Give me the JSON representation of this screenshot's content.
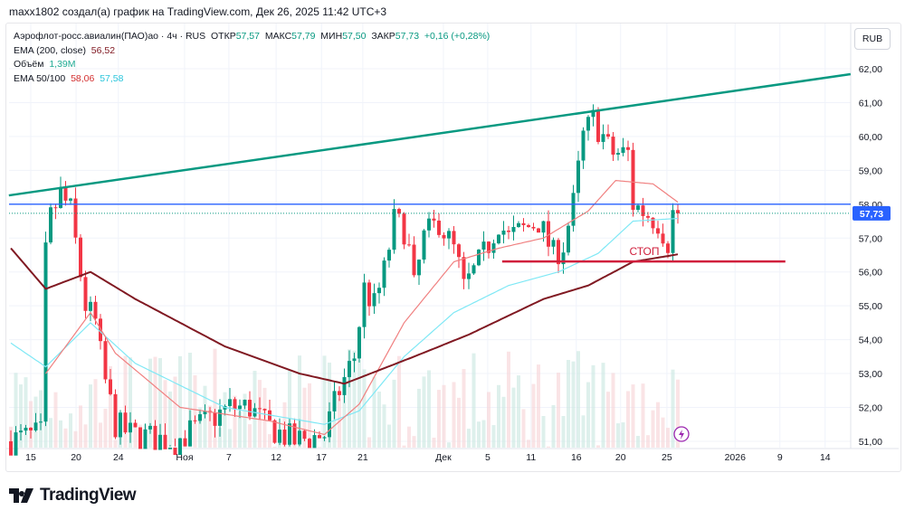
{
  "caption": "maxx1802 создал(а) график на TradingView.com, Дек 26, 2025 11:42 UTC+3",
  "legend": {
    "symbol": "Аэрофлот-росс.авиалин(ПАО)ао · 4ч · RUS",
    "open_label": "ОТКР",
    "open": "57,57",
    "high_label": "МАКС",
    "high": "57,79",
    "low_label": "МИН",
    "low": "57,50",
    "close_label": "ЗАКР",
    "close": "57,73",
    "change": "+0,16 (+0,28%)",
    "ema200_label": "EMA (200, close)",
    "ema200": "56,52",
    "volume_label": "Объём",
    "volume": "1,39M",
    "ema50_label": "EMA 50/100",
    "ema50": "58,06",
    "ema100": "57,58"
  },
  "currency_button": "RUB",
  "logo_text": "TradingView",
  "colors": {
    "up": "#089981",
    "down": "#f23645",
    "ema200": "#801922",
    "ema50": "#f08080",
    "ema100": "#7fe8f5",
    "trend": "#089981",
    "level": "#2962ff",
    "stop": "#d01f3c"
  },
  "chart_data": {
    "type": "candlestick",
    "y_ticks": [
      "62,00",
      "61,00",
      "60,00",
      "59,00",
      "58,00",
      "57,00",
      "56,00",
      "55,00",
      "54,00",
      "53,00",
      "52,00",
      "51,00"
    ],
    "ylim": [
      50.8,
      62.6
    ],
    "x_ticks": [
      {
        "label": "15",
        "bar": 4
      },
      {
        "label": "20",
        "bar": 13.1
      },
      {
        "label": "24",
        "bar": 21.6
      },
      {
        "label": "Ноя",
        "bar": 34.9
      },
      {
        "label": "7",
        "bar": 43.8
      },
      {
        "label": "12",
        "bar": 53.3
      },
      {
        "label": "17",
        "bar": 62.4
      },
      {
        "label": "21",
        "bar": 70.7
      },
      {
        "label": "Дек",
        "bar": 86.9
      },
      {
        "label": "5",
        "bar": 95.8
      },
      {
        "label": "11",
        "bar": 104.5
      },
      {
        "label": "16",
        "bar": 113.6
      },
      {
        "label": "20",
        "bar": 122.5
      },
      {
        "label": "25",
        "bar": 131.8
      },
      {
        "label": "2026",
        "bar": 145.5
      },
      {
        "label": "9",
        "bar": 154.5
      },
      {
        "label": "14",
        "bar": 163.6
      }
    ],
    "bars": 135,
    "price_path": [
      [
        0,
        51.0
      ],
      [
        7,
        51.2
      ],
      [
        7.3,
        55.5
      ],
      [
        8.7,
        57.5
      ],
      [
        11,
        58.3
      ],
      [
        13,
        57.8
      ],
      [
        16,
        55
      ],
      [
        18,
        54.5
      ],
      [
        19.6,
        53
      ],
      [
        22,
        51.5
      ],
      [
        25,
        51.2
      ],
      [
        34,
        51
      ],
      [
        45,
        52
      ],
      [
        49,
        52
      ],
      [
        52,
        51.5
      ],
      [
        58,
        51
      ],
      [
        64,
        51.2
      ],
      [
        67,
        52.5
      ],
      [
        70,
        53.5
      ],
      [
        72,
        55.5
      ],
      [
        74,
        55
      ],
      [
        76,
        56
      ],
      [
        78,
        57.5
      ],
      [
        80.5,
        57.2
      ],
      [
        82,
        55.5
      ],
      [
        84,
        57
      ],
      [
        87,
        57.5
      ],
      [
        90.5,
        56.5
      ],
      [
        92,
        55.5
      ],
      [
        96,
        56.5
      ],
      [
        99,
        57.5
      ],
      [
        101,
        57
      ],
      [
        107,
        57.5
      ],
      [
        110,
        56.5
      ],
      [
        112,
        56.8
      ],
      [
        114,
        58
      ],
      [
        116,
        60
      ],
      [
        118,
        60.5
      ],
      [
        120,
        60
      ],
      [
        121.5,
        59.5
      ],
      [
        125,
        59.5
      ],
      [
        126,
        58
      ],
      [
        128,
        57.8
      ],
      [
        131,
        57.5
      ],
      [
        133,
        56.9
      ],
      [
        134,
        57.73
      ]
    ],
    "ema200": [
      [
        0,
        56.7
      ],
      [
        7,
        55.5
      ],
      [
        16,
        56.0
      ],
      [
        25,
        55.2
      ],
      [
        43,
        53.8
      ],
      [
        58,
        53.0
      ],
      [
        67,
        52.7
      ],
      [
        74,
        53.1
      ],
      [
        81,
        53.5
      ],
      [
        92,
        54.15
      ],
      [
        107,
        55.2
      ],
      [
        116,
        55.6
      ],
      [
        125,
        56.3
      ],
      [
        134,
        56.52
      ]
    ],
    "ema50": [
      [
        7,
        53.0
      ],
      [
        16,
        54.8
      ],
      [
        21,
        53.6
      ],
      [
        34,
        52.0
      ],
      [
        52,
        51.6
      ],
      [
        63,
        51.2
      ],
      [
        70,
        52.1
      ],
      [
        79,
        54.5
      ],
      [
        89,
        56.3
      ],
      [
        98,
        56.7
      ],
      [
        107,
        57.0
      ],
      [
        116,
        57.8
      ],
      [
        121.5,
        58.7
      ],
      [
        129,
        58.6
      ],
      [
        134,
        58.06
      ]
    ],
    "ema100": [
      [
        0,
        53.9
      ],
      [
        7,
        53.2
      ],
      [
        16,
        54.5
      ],
      [
        25,
        53.3
      ],
      [
        43,
        52.0
      ],
      [
        63,
        51.5
      ],
      [
        70,
        51.9
      ],
      [
        79,
        53.5
      ],
      [
        89,
        54.8
      ],
      [
        100,
        55.6
      ],
      [
        110,
        56.0
      ],
      [
        118,
        56.55
      ],
      [
        125,
        57.5
      ],
      [
        134,
        57.58
      ]
    ],
    "trendline": [
      [
        -0.4,
        58.26
      ],
      [
        168.7,
        61.84
      ]
    ],
    "level": 58.0,
    "stop": {
      "from_bar": 98.7,
      "to_bar": 155.6,
      "price": 56.31,
      "label": "СТОП"
    },
    "last_price": "57,73",
    "last_value": 57.73
  }
}
